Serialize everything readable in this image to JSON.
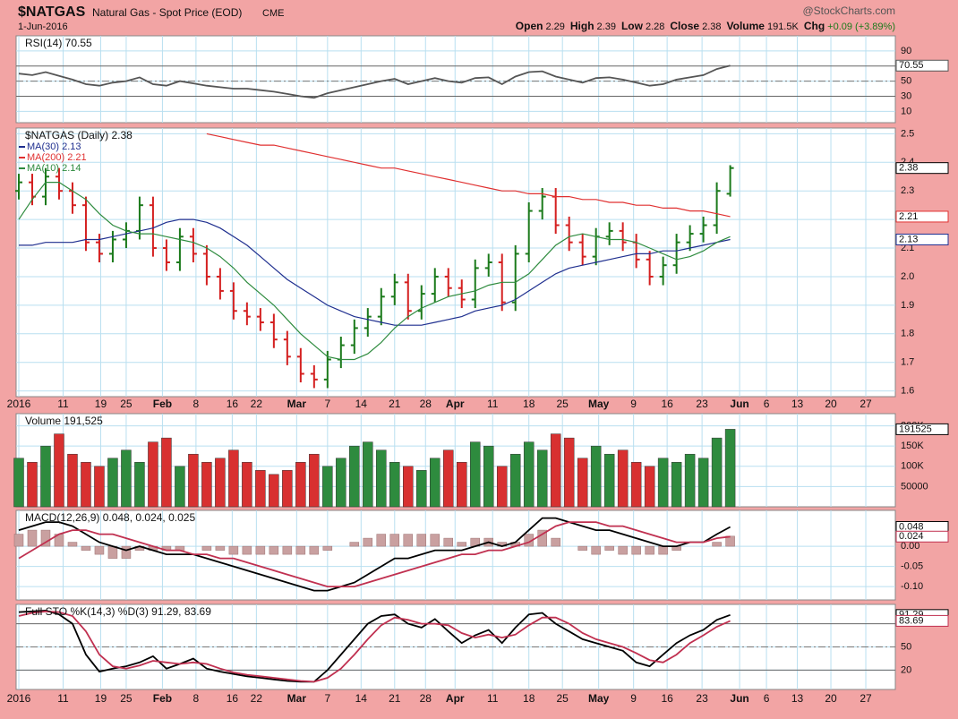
{
  "header": {
    "symbol": "$NATGAS",
    "name": "Natural Gas - Spot Price (EOD)",
    "exchange": "CME",
    "date": "1-Jun-2016",
    "source": "@StockCharts.com",
    "quote": [
      {
        "label": "Open",
        "value": 2.29
      },
      {
        "label": "High",
        "value": 2.39
      },
      {
        "label": "Low",
        "value": 2.28
      },
      {
        "label": "Close",
        "value": 2.38
      },
      {
        "label": "Volume",
        "value": "191.5K"
      },
      {
        "label": "Chg",
        "value": "+0.09 (+3.89%)"
      }
    ]
  },
  "chart_data": [
    {
      "type": "line",
      "title": "RSI(14) 70.55",
      "ylim": [
        -5,
        110
      ],
      "yticks": [
        10,
        30,
        50,
        90
      ],
      "reference_lines": [
        70,
        30
      ],
      "dashed_reference_lines": [
        50
      ],
      "series": [
        {
          "color": "#555555",
          "value_box": true,
          "values": [
            60,
            58,
            62,
            57,
            52,
            46,
            44,
            48,
            50,
            55,
            46,
            44,
            50,
            47,
            44,
            42,
            40,
            40,
            38,
            36,
            33,
            30,
            28,
            34,
            38,
            42,
            46,
            50,
            53,
            46,
            50,
            54,
            50,
            48,
            54,
            55,
            46,
            56,
            62,
            63,
            56,
            52,
            48,
            54,
            55,
            52,
            48,
            44,
            46,
            52,
            55,
            58,
            66,
            70.55
          ]
        }
      ]
    },
    {
      "type": "ohlc",
      "title": "$NATGAS (Daily) 2.38",
      "up_color": "#1b7a1b",
      "down_color": "#d42020",
      "value_box": true,
      "grid": true,
      "xlim": [
        -0.2,
        65.3
      ],
      "xticks": [
        {
          "value": 0,
          "label": "2016"
        },
        {
          "value": 3.3,
          "label": "11"
        },
        {
          "value": 6.1,
          "label": "19"
        },
        {
          "value": 8,
          "label": "25"
        },
        {
          "value": 10.7,
          "label": "Feb"
        },
        {
          "value": 13.2,
          "label": "8"
        },
        {
          "value": 15.9,
          "label": "16"
        },
        {
          "value": 17.7,
          "label": "22"
        },
        {
          "value": 20.7,
          "label": "Mar"
        },
        {
          "value": 23,
          "label": "7"
        },
        {
          "value": 25.5,
          "label": "14"
        },
        {
          "value": 28,
          "label": "21"
        },
        {
          "value": 30.3,
          "label": "28"
        },
        {
          "value": 32.5,
          "label": "Apr"
        },
        {
          "value": 35.3,
          "label": "11"
        },
        {
          "value": 38,
          "label": "18"
        },
        {
          "value": 40.5,
          "label": "25"
        },
        {
          "value": 43.2,
          "label": "May"
        },
        {
          "value": 45.8,
          "label": "9"
        },
        {
          "value": 48.3,
          "label": "16"
        },
        {
          "value": 50.9,
          "label": "23"
        },
        {
          "value": 53.7,
          "label": "Jun"
        },
        {
          "value": 55.7,
          "label": "6"
        },
        {
          "value": 58,
          "label": "13"
        },
        {
          "value": 60.5,
          "label": "20"
        },
        {
          "value": 63.1,
          "label": "27"
        }
      ],
      "ylim": [
        1.58,
        2.52
      ],
      "yticks": [
        1.6,
        1.7,
        1.8,
        1.9,
        {
          "value": 2,
          "label": "2.0"
        },
        2.1,
        2.2,
        2.3,
        2.4,
        2.5
      ],
      "open": [
        2.3,
        2.33,
        2.28,
        2.35,
        2.3,
        2.25,
        2.12,
        2.08,
        2.13,
        2.16,
        2.25,
        2.1,
        2.05,
        2.14,
        2.08,
        2.0,
        1.95,
        1.88,
        1.86,
        1.84,
        1.78,
        1.72,
        1.66,
        1.64,
        1.71,
        1.76,
        1.82,
        1.86,
        1.93,
        1.98,
        1.88,
        1.94,
        2.0,
        1.96,
        1.92,
        2.03,
        2.05,
        1.91,
        2.08,
        2.23,
        2.28,
        2.18,
        2.12,
        2.07,
        2.14,
        2.16,
        2.12,
        2.06,
        2.0,
        2.04,
        2.12,
        2.15,
        2.18,
        2.29
      ],
      "high": [
        2.36,
        2.36,
        2.38,
        2.38,
        2.33,
        2.28,
        2.15,
        2.16,
        2.19,
        2.28,
        2.28,
        2.13,
        2.17,
        2.17,
        2.11,
        2.03,
        1.98,
        1.91,
        1.89,
        1.87,
        1.81,
        1.75,
        1.69,
        1.74,
        1.79,
        1.85,
        1.89,
        1.96,
        2.01,
        2.01,
        1.97,
        2.03,
        2.03,
        1.99,
        2.06,
        2.08,
        2.08,
        2.11,
        2.26,
        2.31,
        2.31,
        2.21,
        2.15,
        2.17,
        2.19,
        2.19,
        2.15,
        2.09,
        2.07,
        2.15,
        2.18,
        2.21,
        2.33,
        2.39
      ],
      "low": [
        2.27,
        2.25,
        2.25,
        2.27,
        2.22,
        2.09,
        2.05,
        2.05,
        2.1,
        2.13,
        2.07,
        2.02,
        2.02,
        2.05,
        1.97,
        1.92,
        1.85,
        1.83,
        1.81,
        1.75,
        1.69,
        1.63,
        1.61,
        1.61,
        1.68,
        1.73,
        1.79,
        1.83,
        1.9,
        1.85,
        1.85,
        1.91,
        1.93,
        1.89,
        1.89,
        2.0,
        1.88,
        1.88,
        2.05,
        2.2,
        2.15,
        2.09,
        2.04,
        2.04,
        2.11,
        2.09,
        2.03,
        1.97,
        1.97,
        2.01,
        2.09,
        2.12,
        2.15,
        2.28
      ],
      "close": [
        2.33,
        2.28,
        2.35,
        2.3,
        2.25,
        2.12,
        2.08,
        2.13,
        2.16,
        2.25,
        2.1,
        2.05,
        2.14,
        2.08,
        2.0,
        1.95,
        1.88,
        1.86,
        1.84,
        1.78,
        1.72,
        1.66,
        1.64,
        1.71,
        1.76,
        1.82,
        1.86,
        1.93,
        1.98,
        1.88,
        1.94,
        2.0,
        1.96,
        1.92,
        2.03,
        2.05,
        1.91,
        2.08,
        2.23,
        2.28,
        2.18,
        2.12,
        2.07,
        2.14,
        2.16,
        2.12,
        2.06,
        2.0,
        2.04,
        2.12,
        2.15,
        2.18,
        2.3,
        2.38
      ],
      "series": [
        {
          "name": "MA(30) 2.13",
          "color": "#1f2f8f",
          "value_box": true,
          "values": [
            2.11,
            2.11,
            2.12,
            2.12,
            2.12,
            2.13,
            2.13,
            2.14,
            2.15,
            2.16,
            2.17,
            2.19,
            2.2,
            2.2,
            2.19,
            2.17,
            2.14,
            2.11,
            2.07,
            2.03,
            1.99,
            1.96,
            1.93,
            1.9,
            1.88,
            1.86,
            1.85,
            1.84,
            1.83,
            1.83,
            1.83,
            1.84,
            1.85,
            1.86,
            1.88,
            1.89,
            1.9,
            1.92,
            1.95,
            1.98,
            2.01,
            2.03,
            2.04,
            2.05,
            2.06,
            2.07,
            2.08,
            2.08,
            2.09,
            2.09,
            2.1,
            2.11,
            2.12,
            2.13
          ]
        },
        {
          "name": "MA(200) 2.21",
          "color": "#e03030",
          "value_box": true,
          "values": [
            null,
            null,
            null,
            null,
            null,
            null,
            null,
            null,
            null,
            null,
            null,
            null,
            null,
            null,
            2.5,
            2.49,
            2.48,
            2.47,
            2.46,
            2.46,
            2.45,
            2.44,
            2.43,
            2.42,
            2.41,
            2.4,
            2.39,
            2.38,
            2.38,
            2.37,
            2.36,
            2.35,
            2.34,
            2.33,
            2.32,
            2.31,
            2.3,
            2.3,
            2.29,
            2.29,
            2.28,
            2.28,
            2.27,
            2.27,
            2.26,
            2.26,
            2.25,
            2.25,
            2.24,
            2.24,
            2.23,
            2.23,
            2.22,
            2.21
          ]
        },
        {
          "name": "MA(10) 2.14",
          "color": "#2e8b3e",
          "values": [
            2.2,
            2.27,
            2.33,
            2.33,
            2.3,
            2.27,
            2.22,
            2.18,
            2.16,
            2.15,
            2.15,
            2.14,
            2.13,
            2.12,
            2.1,
            2.07,
            2.03,
            1.98,
            1.94,
            1.9,
            1.85,
            1.8,
            1.76,
            1.72,
            1.71,
            1.71,
            1.73,
            1.77,
            1.82,
            1.86,
            1.89,
            1.91,
            1.93,
            1.94,
            1.95,
            1.97,
            1.98,
            1.98,
            2.01,
            2.06,
            2.11,
            2.14,
            2.15,
            2.14,
            2.13,
            2.13,
            2.12,
            2.1,
            2.08,
            2.06,
            2.07,
            2.09,
            2.12,
            2.14
          ]
        }
      ]
    },
    {
      "type": "bar",
      "title": "Volume 191,525",
      "value_box": true,
      "ylim": [
        0,
        230000
      ],
      "yticks": [
        50000,
        {
          "value": 100000,
          "label": "100K"
        },
        {
          "value": 150000,
          "label": "150K"
        },
        {
          "value": 200000,
          "label": "200K"
        }
      ],
      "values": [
        120000,
        110000,
        150000,
        180000,
        130000,
        110000,
        100000,
        120000,
        140000,
        110000,
        160000,
        170000,
        100000,
        130000,
        110000,
        120000,
        140000,
        110000,
        90000,
        80000,
        90000,
        110000,
        130000,
        100000,
        120000,
        150000,
        160000,
        140000,
        110000,
        100000,
        90000,
        120000,
        140000,
        110000,
        160000,
        150000,
        100000,
        130000,
        160000,
        140000,
        180000,
        170000,
        120000,
        150000,
        130000,
        140000,
        110000,
        100000,
        120000,
        110000,
        130000,
        120000,
        170000,
        191525
      ]
    },
    {
      "type": "line",
      "title": "MACD(12,26,9) 0.048, 0.024, 0.025",
      "ylim": [
        -0.133,
        0.089
      ],
      "yticks": [
        {
          "value": 0,
          "label": "0.00"
        },
        -0.05,
        {
          "value": -0.1,
          "label": "-0.10"
        }
      ],
      "series": [
        {
          "kind": "histogram",
          "color": "#c9a0a0",
          "values": [
            0.03,
            0.04,
            0.04,
            0.03,
            0.01,
            -0.01,
            -0.02,
            -0.03,
            -0.03,
            -0.01,
            -0.01,
            -0.01,
            -0.01,
            0.0,
            -0.01,
            -0.01,
            -0.02,
            -0.02,
            -0.02,
            -0.02,
            -0.02,
            -0.02,
            -0.02,
            -0.01,
            0.0,
            0.01,
            0.02,
            0.03,
            0.03,
            0.03,
            0.03,
            0.03,
            0.02,
            0.01,
            0.02,
            0.02,
            0.01,
            0.01,
            0.03,
            0.04,
            0.02,
            0.0,
            -0.01,
            -0.02,
            -0.01,
            -0.02,
            -0.02,
            -0.02,
            -0.02,
            -0.01,
            0.0,
            0.0,
            0.01,
            0.025
          ]
        },
        {
          "color": "#000000",
          "value_box": true,
          "values": [
            0.04,
            0.05,
            0.06,
            0.06,
            0.05,
            0.03,
            0.01,
            0.0,
            -0.01,
            0.0,
            -0.01,
            -0.02,
            -0.02,
            -0.02,
            -0.03,
            -0.04,
            -0.05,
            -0.06,
            -0.07,
            -0.08,
            -0.09,
            -0.1,
            -0.11,
            -0.11,
            -0.1,
            -0.09,
            -0.07,
            -0.05,
            -0.03,
            -0.03,
            -0.02,
            -0.01,
            -0.01,
            -0.01,
            0.0,
            0.01,
            0.0,
            0.01,
            0.04,
            0.07,
            0.07,
            0.06,
            0.05,
            0.04,
            0.04,
            0.03,
            0.02,
            0.01,
            0.0,
            0.0,
            0.01,
            0.01,
            0.03,
            0.048
          ]
        },
        {
          "color": "#c03050",
          "value_box": true,
          "values": [
            -0.03,
            -0.01,
            0.01,
            0.03,
            0.04,
            0.04,
            0.03,
            0.03,
            0.02,
            0.01,
            0.0,
            -0.01,
            -0.01,
            -0.02,
            -0.02,
            -0.03,
            -0.03,
            -0.04,
            -0.05,
            -0.06,
            -0.07,
            -0.08,
            -0.09,
            -0.1,
            -0.1,
            -0.1,
            -0.09,
            -0.08,
            -0.07,
            -0.06,
            -0.05,
            -0.04,
            -0.03,
            -0.02,
            -0.02,
            -0.01,
            -0.01,
            0.0,
            0.01,
            0.03,
            0.05,
            0.06,
            0.06,
            0.06,
            0.05,
            0.05,
            0.04,
            0.03,
            0.02,
            0.01,
            0.01,
            0.01,
            0.02,
            0.024
          ]
        }
      ]
    },
    {
      "type": "line",
      "title": "Full STO %K(14,3) %D(3) 91.29, 83.69",
      "ylim": [
        -5,
        105
      ],
      "yticks": [
        20,
        50
      ],
      "reference_lines": [
        80,
        20
      ],
      "dashed_reference_lines": [
        50
      ],
      "series": [
        {
          "color": "#000000",
          "value_box": true,
          "values": [
            95,
            96,
            97,
            92,
            80,
            40,
            18,
            22,
            25,
            30,
            38,
            22,
            28,
            35,
            22,
            18,
            15,
            12,
            10,
            8,
            6,
            5,
            5,
            20,
            40,
            60,
            80,
            90,
            92,
            80,
            75,
            86,
            70,
            55,
            65,
            72,
            55,
            75,
            92,
            94,
            80,
            70,
            60,
            55,
            50,
            45,
            30,
            25,
            40,
            55,
            65,
            72,
            85,
            91.29
          ]
        },
        {
          "color": "#c03050",
          "value_box": true,
          "values": [
            90,
            94,
            96,
            95,
            90,
            70,
            40,
            25,
            22,
            26,
            32,
            30,
            28,
            30,
            28,
            22,
            17,
            14,
            12,
            10,
            8,
            6,
            5,
            10,
            22,
            40,
            60,
            78,
            88,
            85,
            80,
            80,
            78,
            68,
            62,
            66,
            62,
            66,
            78,
            88,
            88,
            80,
            68,
            60,
            55,
            50,
            42,
            33,
            30,
            40,
            55,
            65,
            76,
            83.69
          ]
        }
      ]
    }
  ]
}
